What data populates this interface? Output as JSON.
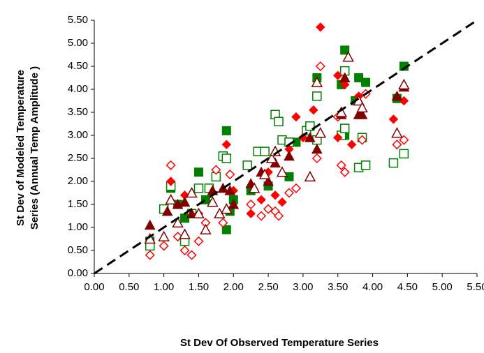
{
  "chart_data": {
    "type": "scatter",
    "xlabel": "St Dev Of Observed Temperature Series",
    "ylabel": [
      "St Dev of Modeled Temperature",
      "Series (Annual Temp Amplitude )"
    ],
    "xlim": [
      0,
      5.5
    ],
    "ylim": [
      0,
      5.5
    ],
    "xticks": [
      {
        "value": 0,
        "label": "0.00"
      },
      {
        "value": 0.5,
        "label": "0.50"
      },
      {
        "value": 1,
        "label": "1.00"
      },
      {
        "value": 1.5,
        "label": "1.50"
      },
      {
        "value": 2,
        "label": "2.00"
      },
      {
        "value": 2.5,
        "label": "2.50"
      },
      {
        "value": 3,
        "label": "3.00"
      },
      {
        "value": 3.5,
        "label": "3.50"
      },
      {
        "value": 4,
        "label": "4.00"
      },
      {
        "value": 4.5,
        "label": "4.50"
      },
      {
        "value": 5,
        "label": "5.00"
      },
      {
        "value": 5.5,
        "label": "5.50"
      }
    ],
    "yticks": [
      {
        "value": 0,
        "label": "0.00"
      },
      {
        "value": 0.5,
        "label": "0.50"
      },
      {
        "value": 1,
        "label": "1.00"
      },
      {
        "value": 1.5,
        "label": "1.50"
      },
      {
        "value": 2,
        "label": "2.00"
      },
      {
        "value": 2.5,
        "label": "2.50"
      },
      {
        "value": 3,
        "label": "3.00"
      },
      {
        "value": 3.5,
        "label": "3.50"
      },
      {
        "value": 4,
        "label": "4.00"
      },
      {
        "value": 4.5,
        "label": "4.50"
      },
      {
        "value": 5,
        "label": "5.00"
      },
      {
        "value": 5.5,
        "label": "5.50"
      }
    ],
    "grid": false,
    "reference_line": {
      "x": [
        0,
        5.5
      ],
      "y": [
        0,
        5.5
      ],
      "color": "#000000",
      "dashed": true
    },
    "series": [
      {
        "marker": "square",
        "filled": true,
        "color": "#008000",
        "x": [
          0.8,
          1.1,
          1.2,
          1.5,
          1.6,
          1.9,
          1.9,
          1.95,
          2.25,
          2.5,
          2.8,
          2.9,
          3.2,
          3.2,
          3.55,
          3.6,
          3.6,
          3.8,
          3.9,
          3.75,
          4.45,
          4.35,
          1.3,
          2.0
        ],
        "values": [
          0.7,
          1.85,
          1.5,
          2.2,
          1.6,
          3.1,
          0.95,
          1.35,
          1.8,
          1.9,
          2.1,
          2.85,
          4.25,
          3.85,
          4.1,
          4.85,
          3.0,
          4.25,
          4.15,
          3.75,
          4.5,
          3.8,
          1.2,
          1.6
        ]
      },
      {
        "marker": "square",
        "filled": false,
        "color": "#008000",
        "x": [
          0.8,
          1.0,
          1.1,
          1.3,
          1.4,
          1.5,
          1.65,
          1.75,
          1.85,
          1.9,
          2.2,
          2.35,
          2.45,
          2.6,
          2.65,
          2.7,
          2.8,
          3.05,
          3.1,
          3.2,
          3.2,
          3.55,
          3.6,
          3.6,
          3.8,
          3.9,
          4.3,
          4.45,
          3.85
        ],
        "values": [
          0.6,
          1.4,
          1.9,
          0.7,
          1.3,
          1.85,
          1.85,
          2.1,
          2.55,
          2.5,
          2.35,
          2.65,
          2.65,
          3.45,
          3.3,
          2.9,
          2.85,
          3.1,
          3.2,
          2.9,
          3.85,
          3.0,
          4.4,
          3.15,
          2.3,
          2.35,
          2.4,
          2.6,
          2.95
        ]
      },
      {
        "marker": "diamond",
        "filled": true,
        "color": "#ff0000",
        "x": [
          1.1,
          1.3,
          1.5,
          1.9,
          2.0,
          2.25,
          2.4,
          2.5,
          2.6,
          2.7,
          2.8,
          2.9,
          3.0,
          3.15,
          3.25,
          3.5,
          3.6,
          3.8,
          3.9,
          4.3,
          4.45,
          3.7,
          3.5
        ],
        "values": [
          2.0,
          1.7,
          1.3,
          2.8,
          1.8,
          1.3,
          1.6,
          2.2,
          1.7,
          1.55,
          2.7,
          3.4,
          2.95,
          3.55,
          5.35,
          4.3,
          4.1,
          3.85,
          3.9,
          3.35,
          3.75,
          2.8,
          2.95
        ]
      },
      {
        "marker": "diamond",
        "filled": false,
        "color": "#ff0000",
        "x": [
          0.8,
          1.0,
          1.1,
          1.2,
          1.3,
          1.4,
          1.5,
          1.6,
          1.75,
          1.85,
          1.95,
          2.25,
          2.4,
          2.5,
          2.6,
          2.65,
          2.8,
          2.9,
          3.2,
          3.25,
          3.5,
          3.55,
          3.6,
          3.85,
          4.35,
          4.45,
          3.9
        ],
        "values": [
          0.4,
          0.6,
          2.35,
          0.8,
          0.5,
          0.4,
          0.7,
          1.1,
          2.25,
          1.1,
          2.15,
          1.5,
          1.25,
          1.4,
          1.35,
          1.25,
          1.75,
          1.85,
          2.5,
          4.5,
          3.4,
          2.35,
          2.2,
          2.9,
          2.8,
          2.9,
          3.9
        ]
      },
      {
        "marker": "triangle",
        "filled": true,
        "color": "#800000",
        "x": [
          0.8,
          1.05,
          1.2,
          1.3,
          1.7,
          1.85,
          1.95,
          2.25,
          2.4,
          2.5,
          2.6,
          2.8,
          3.1,
          3.2,
          3.55,
          3.6,
          3.8,
          3.85,
          4.35,
          4.45,
          1.4,
          2.0
        ],
        "values": [
          1.05,
          1.35,
          1.5,
          1.55,
          1.8,
          1.85,
          1.8,
          1.95,
          2.2,
          2.0,
          2.4,
          2.55,
          2.95,
          2.7,
          3.45,
          4.25,
          3.45,
          3.45,
          3.85,
          4.05,
          1.3,
          1.5
        ]
      },
      {
        "marker": "triangle",
        "filled": false,
        "color": "#800000",
        "x": [
          0.8,
          1.0,
          1.1,
          1.2,
          1.3,
          1.4,
          1.5,
          1.6,
          1.7,
          1.8,
          1.9,
          2.3,
          2.45,
          2.55,
          2.6,
          2.7,
          3.1,
          3.2,
          3.55,
          3.65,
          3.8,
          3.85,
          4.35,
          4.45,
          3.25
        ],
        "values": [
          0.75,
          0.8,
          1.6,
          1.1,
          0.85,
          1.75,
          1.3,
          0.95,
          1.55,
          1.3,
          1.4,
          1.85,
          2.15,
          2.5,
          2.65,
          2.2,
          2.1,
          4.15,
          3.5,
          4.7,
          3.75,
          3.6,
          3.05,
          4.1,
          3.05
        ]
      }
    ]
  }
}
